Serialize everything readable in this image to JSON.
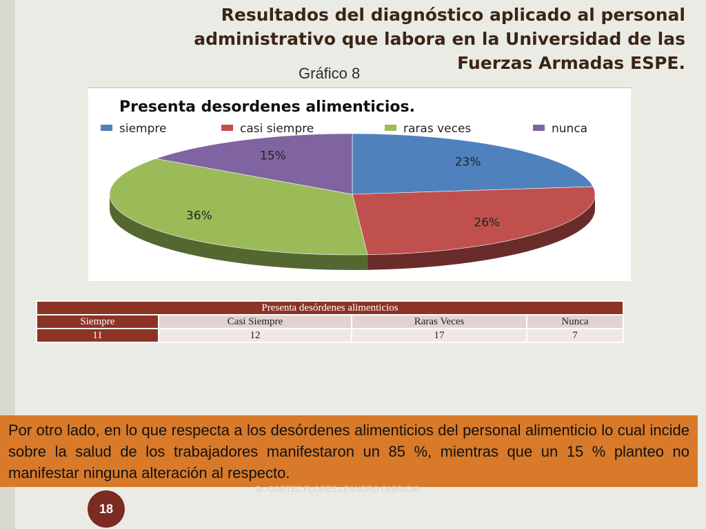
{
  "header": {
    "title": "Resultados del diagnóstico aplicado al personal administrativo que labora en la Universidad de las Fuerzas Armadas ESPE.",
    "subtitle": "Gráfico 8"
  },
  "chart_data": {
    "type": "pie",
    "title": "Presenta desordenes alimenticios.",
    "legend_position": "top",
    "categories": [
      "siempre",
      "casi siempre",
      "raras veces",
      "nunca"
    ],
    "values": [
      23,
      26,
      36,
      15
    ],
    "value_labels": [
      "23%",
      "26%",
      "36%",
      "15%"
    ],
    "colors": [
      "#4f81bd",
      "#c0504d",
      "#9bbb59",
      "#8064a2"
    ]
  },
  "table": {
    "title": "Presenta desórdenes alimenticios",
    "headers": [
      "Siempre",
      "Casi Siempre",
      "Raras Veces",
      "Nunca"
    ],
    "values": [
      "11",
      "12",
      "17",
      "7"
    ]
  },
  "body_text": "Por otro lado, en lo que respecta a los desórdenes alimenticios del personal alimenticio lo cual incide sobre la salud de los trabajadores manifestaron un 85 %, mientras que un 15 % planteo no manifestar ninguna alteración al respecto.",
  "footer": {
    "author": "Sr. CORTEZ FLORES LEANDRO FABRICIO",
    "page_number": "18"
  }
}
